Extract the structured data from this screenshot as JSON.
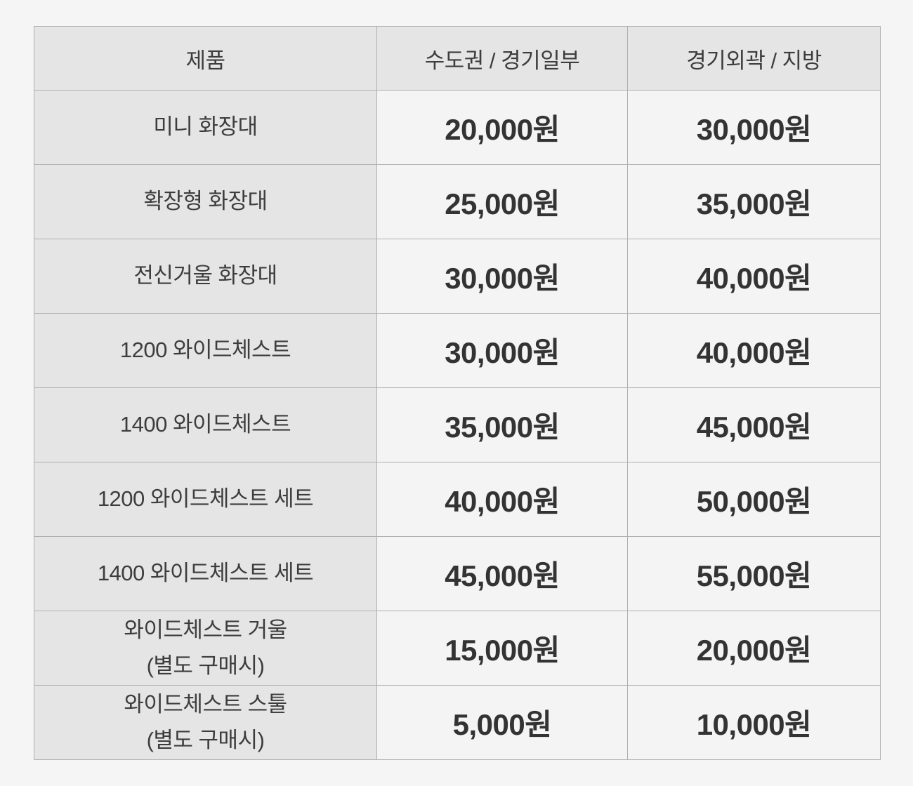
{
  "table": {
    "columns": [
      {
        "key": "product",
        "label": "제품"
      },
      {
        "key": "metro",
        "label": "수도권 / 경기일부"
      },
      {
        "key": "outer",
        "label": "경기외곽 / 지방"
      }
    ],
    "rows": [
      {
        "product": "미니 화장대",
        "note": "",
        "metro": "20,000원",
        "outer": "30,000원"
      },
      {
        "product": "확장형 화장대",
        "note": "",
        "metro": "25,000원",
        "outer": "35,000원"
      },
      {
        "product": "전신거울 화장대",
        "note": "",
        "metro": "30,000원",
        "outer": "40,000원"
      },
      {
        "product": "1200 와이드체스트",
        "note": "",
        "metro": "30,000원",
        "outer": "40,000원"
      },
      {
        "product": "1400 와이드체스트",
        "note": "",
        "metro": "35,000원",
        "outer": "45,000원"
      },
      {
        "product": "1200 와이드체스트 세트",
        "note": "",
        "metro": "40,000원",
        "outer": "50,000원"
      },
      {
        "product": "1400 와이드체스트 세트",
        "note": "",
        "metro": "45,000원",
        "outer": "55,000원"
      },
      {
        "product": "와이드체스트 거울",
        "note": "(별도 구매시)",
        "metro": "15,000원",
        "outer": "20,000원"
      },
      {
        "product": "와이드체스트 스툴",
        "note": "(별도 구매시)",
        "metro": "5,000원",
        "outer": "10,000원"
      }
    ],
    "colors": {
      "page_bg": "#f5f5f5",
      "header_bg": "#e5e5e5",
      "product_col_bg": "#e5e5e5",
      "price_col_bg": "#f4f4f4",
      "border": "#b0b0b0",
      "label_text": "#3d3d3d",
      "price_text": "#333333"
    }
  }
}
